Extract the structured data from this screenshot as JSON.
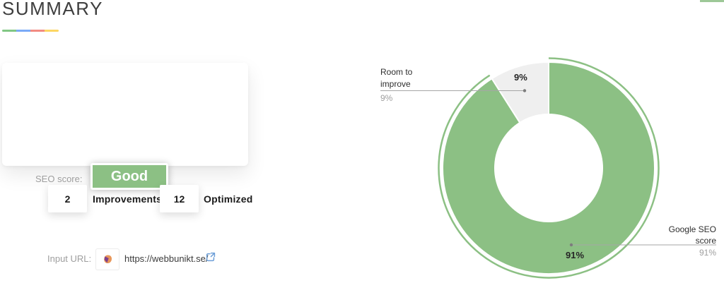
{
  "header": {
    "title": "SUMMARY",
    "underline_colors": [
      "#81c784",
      "#7baaf7",
      "#f28b82",
      "#fdd663"
    ],
    "top_right_bar_color": "#9dc897"
  },
  "score_card": {
    "label": "SEO score:",
    "value": "Good",
    "badge_color": "#8cc084"
  },
  "stats": [
    {
      "count": "2",
      "label": "Improvements"
    },
    {
      "count": "12",
      "label": "Optimized"
    }
  ],
  "input_url": {
    "label": "Input URL:",
    "url": "https://webbunikt.se/",
    "favicon": "webbunikt-favicon",
    "external_icon_color": "#6d9fd8"
  },
  "chart_data": {
    "type": "pie",
    "subtype": "donut",
    "title": "",
    "legend_position": "callout-labels",
    "slices": [
      {
        "label": "Google SEO score",
        "value": 91,
        "percent_label": "91%",
        "color": "#8cc084",
        "highlight_ring": true
      },
      {
        "label": "Room to improve",
        "value": 9,
        "percent_label": "9%",
        "color": "#efefef",
        "highlight_ring": false
      }
    ]
  }
}
